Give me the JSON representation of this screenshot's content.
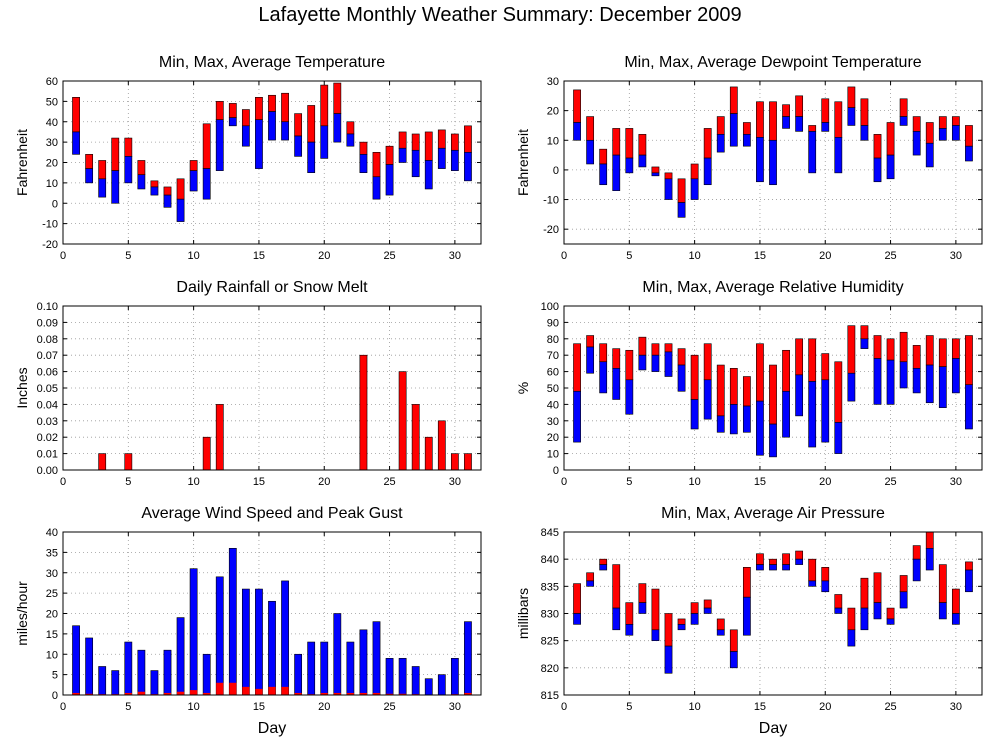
{
  "title": "Lafayette Monthly Weather Summary: December 2009",
  "colors": {
    "max": "#ff0000",
    "min": "#0000ff",
    "outline": "#000000",
    "grid": "#999999"
  },
  "chart_data": [
    {
      "type": "bar",
      "title": "Min, Max, Average Temperature",
      "xlabel": "",
      "ylabel": "Fahrenheit",
      "xlim": [
        0,
        32
      ],
      "ylim": [
        -20,
        60
      ],
      "ytick_step": 10,
      "xticks": [
        0,
        5,
        10,
        15,
        20,
        25,
        30
      ],
      "grid": true,
      "x": [
        1,
        2,
        3,
        4,
        5,
        6,
        7,
        8,
        9,
        10,
        11,
        12,
        13,
        14,
        15,
        16,
        17,
        18,
        19,
        20,
        21,
        22,
        23,
        24,
        25,
        26,
        27,
        28,
        29,
        30,
        31
      ],
      "series": [
        {
          "role": "min",
          "values": [
            24,
            10,
            3,
            0,
            10,
            7,
            4,
            -2,
            -9,
            6,
            2,
            16,
            38,
            28,
            17,
            31,
            31,
            23,
            15,
            22,
            30,
            28,
            15,
            2,
            4,
            20,
            13,
            7,
            17,
            16,
            11
          ]
        },
        {
          "role": "avg",
          "values": [
            35,
            17,
            12,
            16,
            23,
            14,
            8,
            4,
            2,
            16,
            17,
            41,
            42,
            38,
            41,
            45,
            40,
            33,
            30,
            38,
            44,
            34,
            24,
            13,
            19,
            27,
            26,
            21,
            27,
            26,
            25
          ]
        },
        {
          "role": "max",
          "values": [
            52,
            24,
            21,
            32,
            32,
            21,
            11,
            8,
            12,
            21,
            39,
            50,
            49,
            46,
            52,
            53,
            54,
            44,
            48,
            58,
            59,
            40,
            30,
            25,
            28,
            35,
            34,
            35,
            36,
            34,
            38
          ]
        }
      ]
    },
    {
      "type": "bar",
      "title": "Min, Max, Average Dewpoint Temperature",
      "xlabel": "",
      "ylabel": "Fahrenheit",
      "xlim": [
        0,
        32
      ],
      "ylim": [
        -25,
        30
      ],
      "ytick_step": 10,
      "ytick_start": -20,
      "xticks": [
        0,
        5,
        10,
        15,
        20,
        25,
        30
      ],
      "grid": true,
      "x": [
        1,
        2,
        3,
        4,
        5,
        6,
        7,
        8,
        9,
        10,
        11,
        12,
        13,
        14,
        15,
        16,
        17,
        18,
        19,
        20,
        21,
        22,
        23,
        24,
        25,
        26,
        27,
        28,
        29,
        30,
        31
      ],
      "series": [
        {
          "role": "min",
          "values": [
            10,
            2,
            -5,
            -7,
            -1,
            1,
            -2,
            -10,
            -16,
            -10,
            -5,
            6,
            8,
            8,
            -4,
            -5,
            14,
            13,
            -1,
            13,
            -1,
            15,
            10,
            -4,
            -3,
            15,
            5,
            1,
            10,
            10,
            3
          ]
        },
        {
          "role": "avg",
          "values": [
            16,
            10,
            2,
            5,
            4,
            5,
            -1,
            -3,
            -11,
            -3,
            4,
            12,
            19,
            12,
            11,
            10,
            18,
            18,
            13,
            16,
            11,
            21,
            15,
            4,
            5,
            18,
            13,
            9,
            14,
            15,
            8
          ]
        },
        {
          "role": "max",
          "values": [
            27,
            18,
            7,
            14,
            14,
            12,
            1,
            -1,
            -3,
            2,
            14,
            18,
            28,
            16,
            23,
            23,
            22,
            25,
            15,
            24,
            23,
            28,
            24,
            12,
            16,
            24,
            18,
            16,
            18,
            18,
            15
          ]
        }
      ]
    },
    {
      "type": "bar",
      "title": "Daily Rainfall or Snow Melt",
      "xlabel": "",
      "ylabel": "Inches",
      "xlim": [
        0,
        32
      ],
      "ylim": [
        0,
        0.1
      ],
      "ytick_step": 0.01,
      "ytick_decimals": 2,
      "xticks": [
        0,
        5,
        10,
        15,
        20,
        25,
        30
      ],
      "grid": true,
      "x": [
        3,
        5,
        11,
        12,
        23,
        26,
        27,
        28,
        29,
        30,
        31
      ],
      "series": [
        {
          "role": "max",
          "values": [
            0.01,
            0.01,
            0.02,
            0.04,
            0.07,
            0.06,
            0.04,
            0.02,
            0.03,
            0.01,
            0.01
          ]
        }
      ]
    },
    {
      "type": "bar",
      "title": "Min, Max, Average Relative Humidity",
      "xlabel": "",
      "ylabel": "%",
      "xlim": [
        0,
        32
      ],
      "ylim": [
        0,
        100
      ],
      "ytick_step": 10,
      "xticks": [
        0,
        5,
        10,
        15,
        20,
        25,
        30
      ],
      "grid": true,
      "x": [
        1,
        2,
        3,
        4,
        5,
        6,
        7,
        8,
        9,
        10,
        11,
        12,
        13,
        14,
        15,
        16,
        17,
        18,
        19,
        20,
        21,
        22,
        23,
        24,
        25,
        26,
        27,
        28,
        29,
        30,
        31
      ],
      "series": [
        {
          "role": "min",
          "values": [
            17,
            59,
            47,
            43,
            34,
            61,
            60,
            57,
            48,
            25,
            31,
            23,
            22,
            23,
            9,
            8,
            20,
            33,
            14,
            17,
            10,
            42,
            74,
            40,
            40,
            50,
            47,
            41,
            38,
            47,
            25
          ]
        },
        {
          "role": "avg",
          "values": [
            48,
            75,
            66,
            62,
            55,
            70,
            70,
            72,
            64,
            43,
            55,
            33,
            40,
            39,
            42,
            28,
            48,
            58,
            54,
            55,
            29,
            59,
            80,
            68,
            67,
            66,
            62,
            64,
            63,
            68,
            52
          ]
        },
        {
          "role": "max",
          "values": [
            77,
            82,
            77,
            74,
            73,
            81,
            77,
            77,
            74,
            70,
            77,
            64,
            62,
            57,
            77,
            64,
            73,
            80,
            80,
            71,
            66,
            88,
            88,
            82,
            80,
            84,
            76,
            82,
            80,
            80,
            82
          ]
        }
      ]
    },
    {
      "type": "bar",
      "title": "Average Wind Speed and Peak Gust",
      "xlabel": "Day",
      "ylabel": "miles/hour",
      "xlim": [
        0,
        32
      ],
      "ylim": [
        0,
        40
      ],
      "ytick_step": 5,
      "xticks": [
        0,
        5,
        10,
        15,
        20,
        25,
        30
      ],
      "grid": true,
      "x": [
        1,
        2,
        3,
        4,
        5,
        6,
        7,
        8,
        9,
        10,
        11,
        12,
        13,
        14,
        15,
        16,
        17,
        18,
        19,
        20,
        21,
        22,
        23,
        24,
        25,
        26,
        27,
        28,
        29,
        30,
        31
      ],
      "series": [
        {
          "role": "avg",
          "values": [
            0.5,
            0.3,
            0.2,
            0.2,
            0.5,
            0.8,
            0.2,
            0.5,
            0.8,
            1.2,
            0.5,
            3,
            3,
            2,
            1.5,
            2,
            2,
            0.5,
            0.2,
            0.5,
            0.5,
            0.5,
            0.5,
            0.5,
            0.3,
            0.3,
            0.2,
            0.1,
            0.1,
            0.2,
            0.5
          ]
        },
        {
          "role": "peak",
          "values": [
            17,
            14,
            7,
            6,
            13,
            11,
            6,
            11,
            19,
            31,
            10,
            29,
            36,
            26,
            26,
            23,
            28,
            10,
            13,
            13,
            20,
            13,
            16,
            18,
            9,
            9,
            7,
            4,
            5,
            9,
            18
          ]
        }
      ]
    },
    {
      "type": "bar",
      "title": "Min, Max, Average Air Pressure",
      "xlabel": "Day",
      "ylabel": "millibars",
      "xlim": [
        0,
        32
      ],
      "ylim": [
        815,
        845
      ],
      "ytick_step": 5,
      "xticks": [
        0,
        5,
        10,
        15,
        20,
        25,
        30
      ],
      "grid": true,
      "x": [
        1,
        2,
        3,
        4,
        5,
        6,
        7,
        8,
        9,
        10,
        11,
        12,
        13,
        14,
        15,
        16,
        17,
        18,
        19,
        20,
        21,
        22,
        23,
        24,
        25,
        26,
        27,
        28,
        29,
        30,
        31
      ],
      "series": [
        {
          "role": "min",
          "values": [
            828,
            835,
            838,
            827,
            826,
            830,
            825,
            819,
            827,
            828,
            830,
            826,
            820,
            826,
            838,
            838,
            838,
            839,
            835,
            834,
            830,
            824,
            827,
            829,
            828,
            831,
            836,
            838,
            829,
            828,
            834
          ]
        },
        {
          "role": "avg",
          "values": [
            830,
            836,
            839,
            831,
            828,
            832,
            827,
            824,
            828,
            830,
            831,
            827,
            823,
            833,
            839,
            839,
            839,
            840,
            836,
            836,
            831,
            827,
            831,
            832,
            829,
            834,
            840,
            842,
            832,
            830,
            838
          ]
        },
        {
          "role": "max",
          "values": [
            835.5,
            837.5,
            840,
            839,
            832,
            835.5,
            834.5,
            830,
            829,
            832,
            832.5,
            829,
            827,
            838.5,
            841,
            840,
            841,
            841.5,
            840,
            838.5,
            833.5,
            831,
            836.5,
            837.5,
            831,
            837,
            842.5,
            845,
            839,
            834.5,
            839.5
          ]
        }
      ]
    }
  ]
}
